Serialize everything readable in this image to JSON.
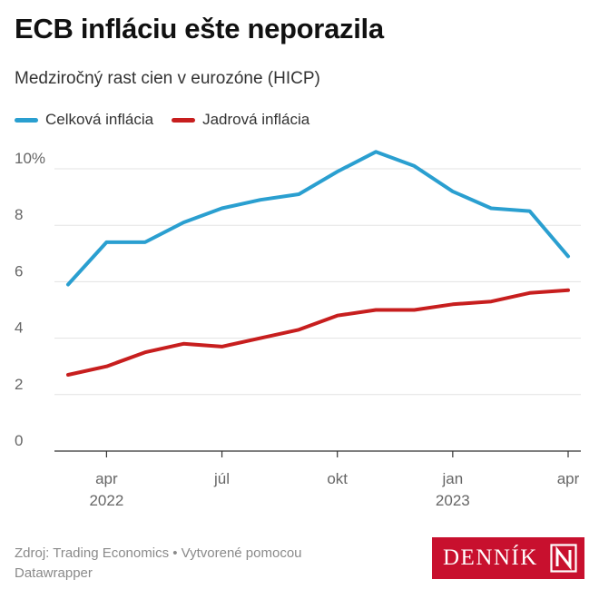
{
  "header": {
    "title": "ECB infláciu ešte neporazila",
    "subtitle": "Medziročný rast cien v eurozóne (HICP)"
  },
  "legend": [
    {
      "label": "Celková inflácia",
      "color": "#2a9fd0"
    },
    {
      "label": "Jadrová inflácia",
      "color": "#c71e1e"
    }
  ],
  "chart_data": {
    "type": "line",
    "title": "ECB infláciu ešte neporazila",
    "subtitle": "Medziročný rast cien v eurozóne (HICP)",
    "x": [
      "2022-03",
      "2022-04",
      "2022-05",
      "2022-06",
      "2022-07",
      "2022-08",
      "2022-09",
      "2022-10",
      "2022-11",
      "2022-12",
      "2023-01",
      "2023-02",
      "2023-03",
      "2023-04"
    ],
    "series": [
      {
        "name": "Celková inflácia",
        "color": "#2a9fd0",
        "values": [
          5.9,
          7.4,
          7.4,
          8.1,
          8.6,
          8.9,
          9.1,
          9.9,
          10.6,
          10.1,
          9.2,
          8.6,
          8.5,
          6.9
        ]
      },
      {
        "name": "Jadrová inflácia",
        "color": "#c71e1e",
        "values": [
          2.7,
          3.0,
          3.5,
          3.8,
          3.7,
          4.0,
          4.3,
          4.8,
          5.0,
          5.0,
          5.2,
          5.3,
          5.6,
          5.7
        ]
      }
    ],
    "ylim": [
      0,
      10.9
    ],
    "yticks": [
      {
        "value": 0,
        "label": "0"
      },
      {
        "value": 2,
        "label": "2"
      },
      {
        "value": 4,
        "label": "4"
      },
      {
        "value": 6,
        "label": "6"
      },
      {
        "value": 8,
        "label": "8"
      },
      {
        "value": 10,
        "label": "10%"
      }
    ],
    "xticks": [
      {
        "date": "2022-04",
        "label": "apr",
        "year": "2022"
      },
      {
        "date": "2022-07",
        "label": "júl",
        "year": ""
      },
      {
        "date": "2022-10",
        "label": "okt",
        "year": ""
      },
      {
        "date": "2023-01",
        "label": "jan",
        "year": "2023"
      },
      {
        "date": "2023-04",
        "label": "apr",
        "year": ""
      }
    ],
    "grid": true,
    "legend_position": "top-left"
  },
  "footer": {
    "source": "Zdroj: Trading Economics • Vytvorené pomocou Datawrapper"
  },
  "logo": {
    "text": "DENNÍK",
    "mark": "N",
    "color": "#c8102e"
  }
}
